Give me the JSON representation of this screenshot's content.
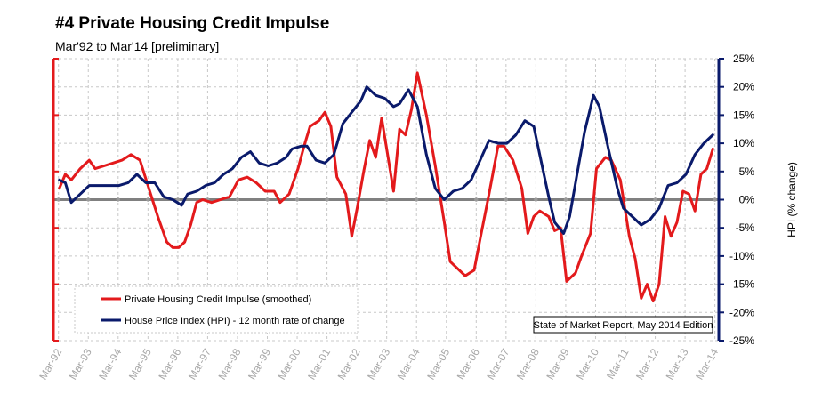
{
  "chart_data": {
    "type": "line",
    "title": "#4 Private Housing Credit Impulse",
    "subtitle": "Mar'92 to Mar'14 [preliminary]",
    "ylabel_right": "HPI (% change)",
    "ylim_right": [
      -25,
      25
    ],
    "yticks_right": [
      "25%",
      "20%",
      "15%",
      "10%",
      "5%",
      "0%",
      "-5%",
      "-10%",
      "-15%",
      "-20%",
      "-25%"
    ],
    "xlim": [
      1992.0,
      2014.3
    ],
    "xticks": [
      "Mar-92",
      "Mar-93",
      "Mar-94",
      "Mar-95",
      "Mar-96",
      "Mar-97",
      "Mar-98",
      "Mar-99",
      "Mar-00",
      "Mar-01",
      "Mar-02",
      "Mar-03",
      "Mar-04",
      "Mar-05",
      "Mar-06",
      "Mar-07",
      "Mar-08",
      "Mar-09",
      "Mar-10",
      "Mar-11",
      "Mar-12",
      "Mar-13",
      "Mar-14"
    ],
    "grid": true,
    "legend_position": "bottom-left",
    "note": "State of Market Report, May 2014 Edition",
    "series": [
      {
        "name": "Private Housing Credit Impulse (smoothed)",
        "color": "#e31a1c",
        "axis": "right",
        "x": [
          1992.2,
          1992.4,
          1992.6,
          1992.9,
          1993.2,
          1993.4,
          1993.7,
          1994.0,
          1994.3,
          1994.6,
          1994.9,
          1995.2,
          1995.5,
          1995.8,
          1996.0,
          1996.2,
          1996.4,
          1996.6,
          1996.8,
          1997.0,
          1997.3,
          1997.6,
          1997.9,
          1998.2,
          1998.5,
          1998.8,
          1999.1,
          1999.4,
          1999.6,
          1999.9,
          2000.2,
          2000.4,
          2000.6,
          2000.9,
          2001.1,
          2001.3,
          2001.5,
          2001.8,
          2002.0,
          2002.2,
          2002.4,
          2002.6,
          2002.8,
          2003.0,
          2003.2,
          2003.4,
          2003.6,
          2003.8,
          2004.0,
          2004.2,
          2004.5,
          2004.8,
          2005.1,
          2005.3,
          2005.5,
          2005.8,
          2006.1,
          2006.3,
          2006.6,
          2006.9,
          2007.1,
          2007.4,
          2007.7,
          2007.9,
          2008.1,
          2008.3,
          2008.6,
          2008.8,
          2009.0,
          2009.2,
          2009.5,
          2009.7,
          2010.0,
          2010.2,
          2010.5,
          2010.7,
          2011.0,
          2011.3,
          2011.5,
          2011.7,
          2011.9,
          2012.1,
          2012.3,
          2012.5,
          2012.7,
          2012.9,
          2013.1,
          2013.3,
          2013.5,
          2013.7,
          2013.9,
          2014.1
        ],
        "values": [
          2.0,
          4.5,
          3.5,
          5.5,
          7.0,
          5.5,
          6.0,
          6.5,
          7.0,
          8.0,
          7.0,
          2.0,
          -3.0,
          -7.5,
          -8.5,
          -8.5,
          -7.5,
          -4.5,
          -0.5,
          0.0,
          -0.5,
          0.0,
          0.5,
          3.5,
          4.0,
          3.0,
          1.5,
          1.5,
          -0.5,
          1.0,
          5.5,
          9.5,
          13.0,
          14.0,
          15.5,
          13.0,
          4.0,
          1.0,
          -6.5,
          -1.0,
          5.0,
          10.5,
          7.5,
          14.5,
          8.0,
          1.5,
          12.5,
          11.5,
          16.0,
          22.5,
          15.0,
          6.0,
          -4.0,
          -11.0,
          -12.0,
          -13.5,
          -12.5,
          -7.0,
          1.0,
          9.5,
          9.5,
          7.0,
          2.0,
          -6.0,
          -3.0,
          -2.0,
          -3.0,
          -5.5,
          -5.0,
          -14.5,
          -13.0,
          -10.0,
          -6.0,
          5.5,
          7.5,
          7.0,
          3.5,
          -6.5,
          -10.5,
          -17.5,
          -15.0,
          -18.0,
          -15.0,
          -3.0,
          -6.5,
          -4.0,
          1.5,
          1.0,
          -2.0,
          4.5,
          5.5,
          9.0
        ]
      },
      {
        "name": "House Price Index (HPI) - 12 month rate of change",
        "color": "#0a1a6b",
        "axis": "right",
        "x": [
          1992.2,
          1992.4,
          1992.6,
          1992.9,
          1993.2,
          1993.5,
          1993.8,
          1994.2,
          1994.5,
          1994.8,
          1995.1,
          1995.4,
          1995.7,
          1996.0,
          1996.3,
          1996.5,
          1996.8,
          1997.1,
          1997.4,
          1997.7,
          1998.0,
          1998.3,
          1998.6,
          1998.9,
          1999.2,
          1999.5,
          1999.8,
          2000.0,
          2000.3,
          2000.5,
          2000.8,
          2001.1,
          2001.4,
          2001.7,
          2002.0,
          2002.3,
          2002.5,
          2002.8,
          2003.1,
          2003.4,
          2003.6,
          2003.9,
          2004.2,
          2004.5,
          2004.8,
          2005.1,
          2005.4,
          2005.7,
          2006.0,
          2006.3,
          2006.6,
          2006.9,
          2007.2,
          2007.5,
          2007.8,
          2008.1,
          2008.3,
          2008.6,
          2008.8,
          2009.1,
          2009.3,
          2009.6,
          2009.8,
          2010.1,
          2010.3,
          2010.6,
          2010.9,
          2011.1,
          2011.4,
          2011.7,
          2012.0,
          2012.3,
          2012.6,
          2012.9,
          2013.2,
          2013.5,
          2013.8,
          2014.1
        ],
        "values": [
          3.5,
          3.0,
          -0.5,
          1.0,
          2.5,
          2.5,
          2.5,
          2.5,
          3.0,
          4.5,
          3.0,
          3.0,
          0.5,
          0.0,
          -1.0,
          1.0,
          1.5,
          2.5,
          3.0,
          4.5,
          5.5,
          7.5,
          8.5,
          6.5,
          6.0,
          6.5,
          7.5,
          9.0,
          9.5,
          9.5,
          7.0,
          6.5,
          8.0,
          13.5,
          15.5,
          17.5,
          20.0,
          18.5,
          18.0,
          16.5,
          17.0,
          19.5,
          16.5,
          8.0,
          2.0,
          0.0,
          1.5,
          2.0,
          3.5,
          7.0,
          10.5,
          10.0,
          10.0,
          11.5,
          14.0,
          13.0,
          8.0,
          0.5,
          -4.0,
          -6.0,
          -3.0,
          6.0,
          12.0,
          18.5,
          16.5,
          9.0,
          2.0,
          -1.5,
          -3.0,
          -4.5,
          -3.5,
          -1.5,
          2.5,
          3.0,
          4.5,
          8.0,
          10.0,
          11.5
        ]
      }
    ]
  }
}
